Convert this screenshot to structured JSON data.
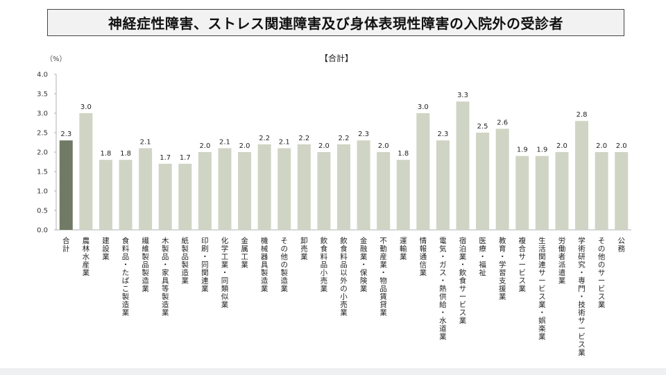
{
  "page": {
    "title": "神経症性障害、ストレス関連障害及び身体表現性障害の入院外の受診者"
  },
  "chart_data": {
    "type": "bar",
    "title": "【合計】",
    "ylabel": "（%）",
    "ylim": [
      0,
      4.0
    ],
    "yticks": [
      "0.0",
      "0.5",
      "1.0",
      "1.5",
      "2.0",
      "2.5",
      "3.0",
      "3.5",
      "4.0"
    ],
    "grid": false,
    "highlight_index": 0,
    "colors": {
      "highlight": "#707a64",
      "bar": "#d0d4c4",
      "axis": "#b0b0b0"
    },
    "categories": [
      "合計",
      "農林水産業",
      "建設業",
      "食料品・たばこ製造業",
      "繊維製品製造業",
      "木製品・家具等製造業",
      "紙製品製造業",
      "印刷・同関連業",
      "化学工業・同類似業",
      "金属工業",
      "機械器具製造業",
      "その他の製造業",
      "卸売業",
      "飲食料品小売業",
      "飲食料品以外の小売業",
      "金融業・保険業",
      "不動産業・物品賃貸業",
      "運輸業",
      "情報通信業",
      "電気・ガス・熱供給・水道業",
      "宿泊業・飲食サービス業",
      "医療・福祉",
      "教育・学習支援業",
      "複合サービス業",
      "生活関連サービス業・娯楽業",
      "労働者派遣業",
      "学術研究・専門・技術サービス業",
      "その他のサービス業",
      "公務"
    ],
    "values": [
      2.3,
      3.0,
      1.8,
      1.8,
      2.1,
      1.7,
      1.7,
      2.0,
      2.1,
      2.0,
      2.2,
      2.1,
      2.2,
      2.0,
      2.2,
      2.3,
      2.0,
      1.8,
      3.0,
      2.3,
      3.3,
      2.5,
      2.6,
      1.9,
      1.9,
      2.0,
      2.8,
      2.0,
      2.0
    ],
    "value_labels": [
      "2.3",
      "3.0",
      "1.8",
      "1.8",
      "2.1",
      "1.7",
      "1.7",
      "2.0",
      "2.1",
      "2.0",
      "2.2",
      "2.1",
      "2.2",
      "2.0",
      "2.2",
      "2.3",
      "2.0",
      "1.8",
      "3.0",
      "2.3",
      "3.3",
      "2.5",
      "2.6",
      "1.9",
      "1.9",
      "2.0",
      "2.8",
      "2.0",
      "2.0"
    ]
  }
}
